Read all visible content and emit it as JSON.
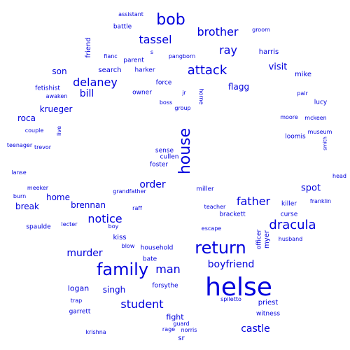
{
  "color": "#0000dd",
  "words": [
    {
      "text": "helse",
      "weight": 36
    },
    {
      "text": "family",
      "weight": 24
    },
    {
      "text": "return",
      "weight": 24
    },
    {
      "text": "house",
      "weight": 22
    },
    {
      "text": "bob",
      "weight": 22
    },
    {
      "text": "dracula",
      "weight": 18
    },
    {
      "text": "attack",
      "weight": 18
    },
    {
      "text": "notice",
      "weight": 16
    },
    {
      "text": "student",
      "weight": 16
    },
    {
      "text": "man",
      "weight": 16
    },
    {
      "text": "father",
      "weight": 16
    },
    {
      "text": "brother",
      "weight": 16
    },
    {
      "text": "tassel",
      "weight": 16
    },
    {
      "text": "ray",
      "weight": 16
    },
    {
      "text": "delaney",
      "weight": 16
    },
    {
      "text": "boyfriend",
      "weight": 14
    },
    {
      "text": "murder",
      "weight": 14
    },
    {
      "text": "order",
      "weight": 14
    },
    {
      "text": "castle",
      "weight": 14
    },
    {
      "text": "bill",
      "weight": 14
    },
    {
      "text": "visit",
      "weight": 13
    },
    {
      "text": "spot",
      "weight": 13
    },
    {
      "text": "singh",
      "weight": 12
    },
    {
      "text": "krueger",
      "weight": 12
    },
    {
      "text": "flagg",
      "weight": 12
    },
    {
      "text": "son",
      "weight": 12
    },
    {
      "text": "break",
      "weight": 12
    },
    {
      "text": "home",
      "weight": 12
    },
    {
      "text": "brennan",
      "weight": 12
    },
    {
      "text": "roca",
      "weight": 12
    },
    {
      "text": "logan",
      "weight": 11
    },
    {
      "text": "fight",
      "weight": 11
    },
    {
      "text": "priest",
      "weight": 10
    },
    {
      "text": "friend",
      "weight": 10
    },
    {
      "text": "harris",
      "weight": 10
    },
    {
      "text": "mike",
      "weight": 10
    },
    {
      "text": "myer",
      "weight": 10
    },
    {
      "text": "search",
      "weight": 10
    },
    {
      "text": "parent",
      "weight": 9
    },
    {
      "text": "sr",
      "weight": 10
    },
    {
      "text": "kiss",
      "weight": 10
    },
    {
      "text": "witness",
      "weight": 9
    },
    {
      "text": "loomis",
      "weight": 9
    },
    {
      "text": "killer",
      "weight": 9
    },
    {
      "text": "brackett",
      "weight": 9
    },
    {
      "text": "curse",
      "weight": 9
    },
    {
      "text": "force",
      "weight": 9
    },
    {
      "text": "bate",
      "weight": 9
    },
    {
      "text": "garrett",
      "weight": 9
    },
    {
      "text": "spaulde",
      "weight": 9
    },
    {
      "text": "harker",
      "weight": 9
    },
    {
      "text": "battle",
      "weight": 9
    },
    {
      "text": "foster",
      "weight": 9
    },
    {
      "text": "sense",
      "weight": 9
    },
    {
      "text": "cullen",
      "weight": 9
    },
    {
      "text": "household",
      "weight": 9
    },
    {
      "text": "forsythe",
      "weight": 9
    },
    {
      "text": "miller",
      "weight": 9
    },
    {
      "text": "fetishist",
      "weight": 9
    },
    {
      "text": "lucy",
      "weight": 9
    },
    {
      "text": "officer",
      "weight": 9
    },
    {
      "text": "owner",
      "weight": 9
    },
    {
      "text": "boss",
      "weight": 8
    },
    {
      "text": "group",
      "weight": 8
    },
    {
      "text": "jr",
      "weight": 8
    },
    {
      "text": "horne",
      "weight": 8
    },
    {
      "text": "moore",
      "weight": 8
    },
    {
      "text": "mckeen",
      "weight": 8
    },
    {
      "text": "museum",
      "weight": 8
    },
    {
      "text": "smith",
      "weight": 7
    },
    {
      "text": "pair",
      "weight": 8
    },
    {
      "text": "head",
      "weight": 8
    },
    {
      "text": "franklin",
      "weight": 8
    },
    {
      "text": "husband",
      "weight": 8
    },
    {
      "text": "escape",
      "weight": 8
    },
    {
      "text": "teacher",
      "weight": 8
    },
    {
      "text": "raff",
      "weight": 8
    },
    {
      "text": "grandfather",
      "weight": 8
    },
    {
      "text": "boy",
      "weight": 8
    },
    {
      "text": "lecter",
      "weight": 8
    },
    {
      "text": "blow",
      "weight": 8
    },
    {
      "text": "trap",
      "weight": 8
    },
    {
      "text": "spiletto",
      "weight": 8
    },
    {
      "text": "guard",
      "weight": 8
    },
    {
      "text": "rage",
      "weight": 8
    },
    {
      "text": "norris",
      "weight": 8
    },
    {
      "text": "krishna",
      "weight": 8
    },
    {
      "text": "burn",
      "weight": 8
    },
    {
      "text": "meeker",
      "weight": 8
    },
    {
      "text": "lanse",
      "weight": 8
    },
    {
      "text": "teenager",
      "weight": 8
    },
    {
      "text": "trevor",
      "weight": 8
    },
    {
      "text": "couple",
      "weight": 8
    },
    {
      "text": "live",
      "weight": 8
    },
    {
      "text": "awaken",
      "weight": 8
    },
    {
      "text": "fianc",
      "weight": 8
    },
    {
      "text": "s",
      "weight": 8
    },
    {
      "text": "pangborn",
      "weight": 8
    },
    {
      "text": "assistant",
      "weight": 8
    },
    {
      "text": "groom",
      "weight": 8
    }
  ]
}
